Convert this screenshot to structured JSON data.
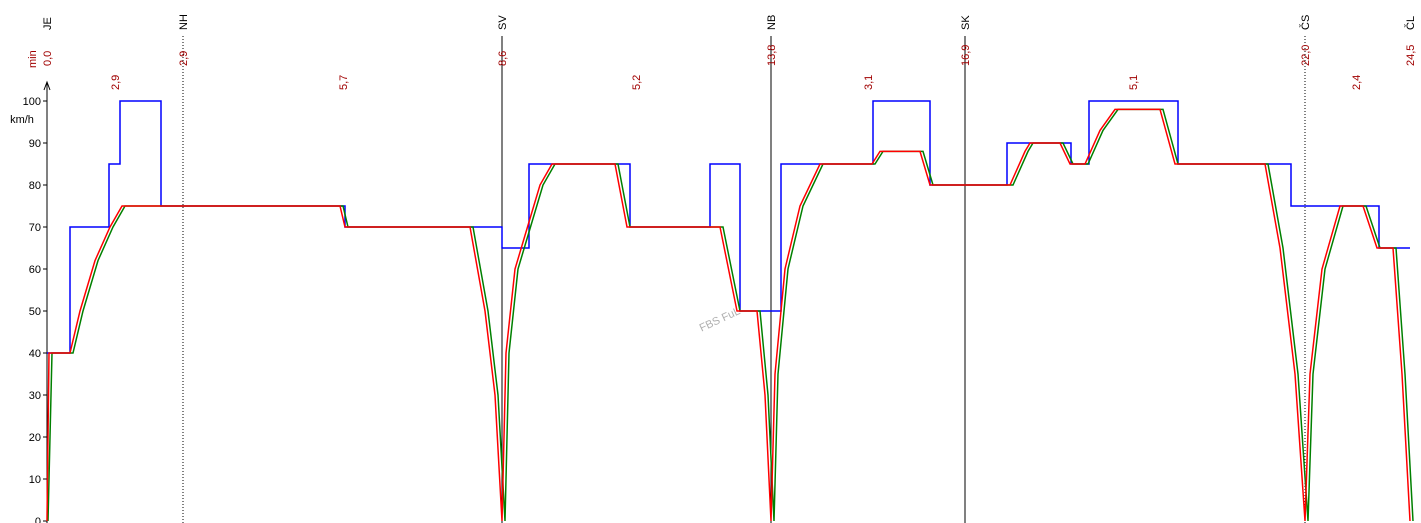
{
  "chart_data": {
    "type": "line",
    "y_unit": "km/h",
    "time_unit": "min",
    "watermark": "FBS FuL",
    "xlim": [
      0,
      1374
    ],
    "ylim": [
      0,
      100
    ],
    "yticks": [
      0,
      10,
      20,
      30,
      40,
      50,
      60,
      70,
      80,
      90,
      100
    ],
    "stations": [
      {
        "name": "JE",
        "x": 0,
        "time": "0,0",
        "line": "none"
      },
      {
        "name": "NH",
        "x": 136,
        "time": "2,9",
        "line": "dotted"
      },
      {
        "name": "SV",
        "x": 455,
        "time": "8,6",
        "line": "solid"
      },
      {
        "name": "NB",
        "x": 724,
        "time": "13,8",
        "line": "solid"
      },
      {
        "name": "SK",
        "x": 918,
        "time": "16,9",
        "line": "solid"
      },
      {
        "name": "ČS",
        "x": 1258,
        "time": "22,0",
        "line": "dotted"
      },
      {
        "name": "ČL",
        "x": 1363,
        "time": "24,5",
        "line": "none"
      }
    ],
    "section_times": [
      {
        "x": 68,
        "label": "2,9"
      },
      {
        "x": 296,
        "label": "5,7"
      },
      {
        "x": 589,
        "label": "5,2"
      },
      {
        "x": 821,
        "label": "3,1"
      },
      {
        "x": 1086,
        "label": "5,1"
      },
      {
        "x": 1309,
        "label": "2,4"
      }
    ],
    "series": [
      {
        "color": "#0000ff",
        "x": [
          0,
          23,
          23,
          62,
          62,
          73,
          73,
          114,
          114,
          298,
          298,
          455,
          455,
          482,
          482,
          583,
          583,
          663,
          663,
          693,
          693,
          734,
          734,
          826,
          826,
          883,
          883,
          960,
          960,
          1024,
          1024,
          1042,
          1042,
          1131,
          1131,
          1244,
          1244,
          1332,
          1332,
          1363
        ],
        "values": [
          40,
          40,
          70,
          70,
          85,
          85,
          100,
          100,
          75,
          75,
          70,
          70,
          65,
          65,
          85,
          85,
          70,
          70,
          85,
          85,
          50,
          50,
          85,
          85,
          100,
          100,
          80,
          80,
          90,
          90,
          85,
          85,
          100,
          100,
          85,
          85,
          75,
          75,
          65,
          65
        ]
      },
      {
        "color": "#008000",
        "x": [
          1,
          5,
          26,
          36,
          51,
          66,
          78,
          296,
          301,
          426,
          441,
          451,
          458,
          462,
          471,
          481,
          496,
          508,
          571,
          583,
          676,
          693,
          713,
          721,
          727,
          731,
          741,
          756,
          776,
          828,
          836,
          876,
          886,
          966,
          981,
          986,
          1016,
          1026,
          1041,
          1056,
          1071,
          1116,
          1131,
          1221,
          1236,
          1251,
          1261,
          1266,
          1278,
          1296,
          1319,
          1333,
          1349,
          1358,
          1366
        ],
        "values": [
          0,
          40,
          40,
          50,
          62,
          70,
          75,
          75,
          70,
          70,
          50,
          30,
          0,
          40,
          60,
          68,
          80,
          85,
          85,
          70,
          70,
          50,
          50,
          30,
          0,
          35,
          60,
          75,
          85,
          85,
          88,
          88,
          80,
          80,
          88,
          90,
          90,
          85,
          85,
          93,
          98,
          98,
          85,
          85,
          65,
          35,
          0,
          35,
          60,
          75,
          75,
          65,
          65,
          35,
          0
        ]
      },
      {
        "color": "#ff0000",
        "x": [
          0,
          2,
          23,
          33,
          48,
          63,
          75,
          293,
          298,
          423,
          438,
          448,
          455,
          459,
          468,
          478,
          493,
          505,
          568,
          580,
          673,
          690,
          710,
          718,
          724,
          728,
          738,
          753,
          773,
          825,
          833,
          873,
          883,
          963,
          978,
          983,
          1013,
          1023,
          1038,
          1053,
          1068,
          1113,
          1128,
          1218,
          1233,
          1248,
          1258,
          1263,
          1275,
          1293,
          1316,
          1330,
          1346,
          1355,
          1363
        ],
        "values": [
          0,
          40,
          40,
          50,
          62,
          70,
          75,
          75,
          70,
          70,
          50,
          30,
          0,
          40,
          60,
          68,
          80,
          85,
          85,
          70,
          70,
          50,
          50,
          30,
          0,
          35,
          60,
          75,
          85,
          85,
          88,
          88,
          80,
          80,
          88,
          90,
          90,
          85,
          85,
          93,
          98,
          98,
          85,
          85,
          65,
          35,
          0,
          35,
          60,
          75,
          75,
          65,
          65,
          35,
          0
        ]
      }
    ]
  }
}
